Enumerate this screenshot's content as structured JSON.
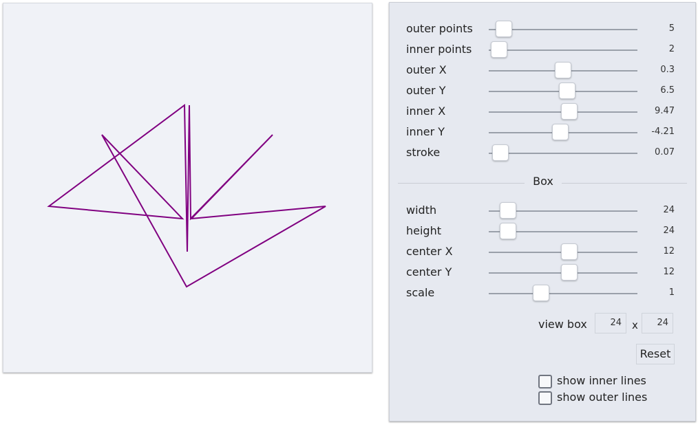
{
  "colors": {
    "stroke": "#800080",
    "preview_bg": "#f0f2f7",
    "panel_bg": "#e6e9f0"
  },
  "sliders": [
    {
      "label": "outer points",
      "value": "5",
      "fraction": 0.1
    },
    {
      "label": "inner points",
      "value": "2",
      "fraction": 0.07
    },
    {
      "label": "outer X",
      "value": "0.3",
      "fraction": 0.5
    },
    {
      "label": "outer Y",
      "value": "6.5",
      "fraction": 0.53
    },
    {
      "label": "inner X",
      "value": "9.47",
      "fraction": 0.54
    },
    {
      "label": "inner Y",
      "value": "-4.21",
      "fraction": 0.48
    },
    {
      "label": "stroke",
      "value": "0.07",
      "fraction": 0.08
    }
  ],
  "box": {
    "title": "Box",
    "sliders": [
      {
        "label": "width",
        "value": "24",
        "fraction": 0.13
      },
      {
        "label": "height",
        "value": "24",
        "fraction": 0.13
      },
      {
        "label": "center X",
        "value": "12",
        "fraction": 0.54
      },
      {
        "label": "center Y",
        "value": "12",
        "fraction": 0.54
      },
      {
        "label": "scale",
        "value": "1",
        "fraction": 0.35
      }
    ],
    "viewbox_label": "view box",
    "viewbox_width": "24",
    "viewbox_separator": "x",
    "viewbox_height": "24",
    "reset_label": "Reset"
  },
  "checkboxes": [
    {
      "label": "show inner lines",
      "checked": false
    },
    {
      "label": "show outer lines",
      "checked": false
    }
  ]
}
